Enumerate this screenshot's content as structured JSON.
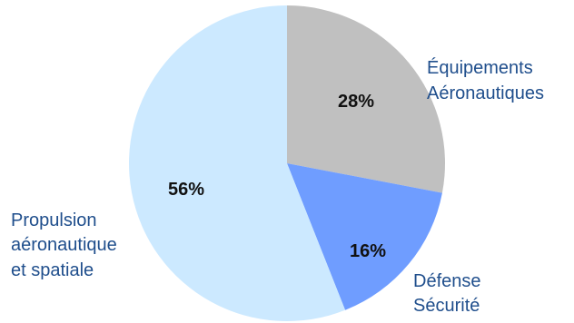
{
  "chart_data": {
    "type": "pie",
    "start_angle_deg": 0,
    "direction": "clockwise",
    "slices": [
      {
        "label_lines": [
          "Équipements",
          "Aéronautiques"
        ],
        "value": 28,
        "display": "28%",
        "color": "#c0c0c0"
      },
      {
        "label_lines": [
          "Défense",
          "Sécurité"
        ],
        "value": 16,
        "display": "16%",
        "color": "#6f9dff"
      },
      {
        "label_lines": [
          "Propulsion",
          "aéronautique",
          "et spatiale"
        ],
        "value": 56,
        "display": "56%",
        "color": "#cce9ff"
      }
    ]
  }
}
